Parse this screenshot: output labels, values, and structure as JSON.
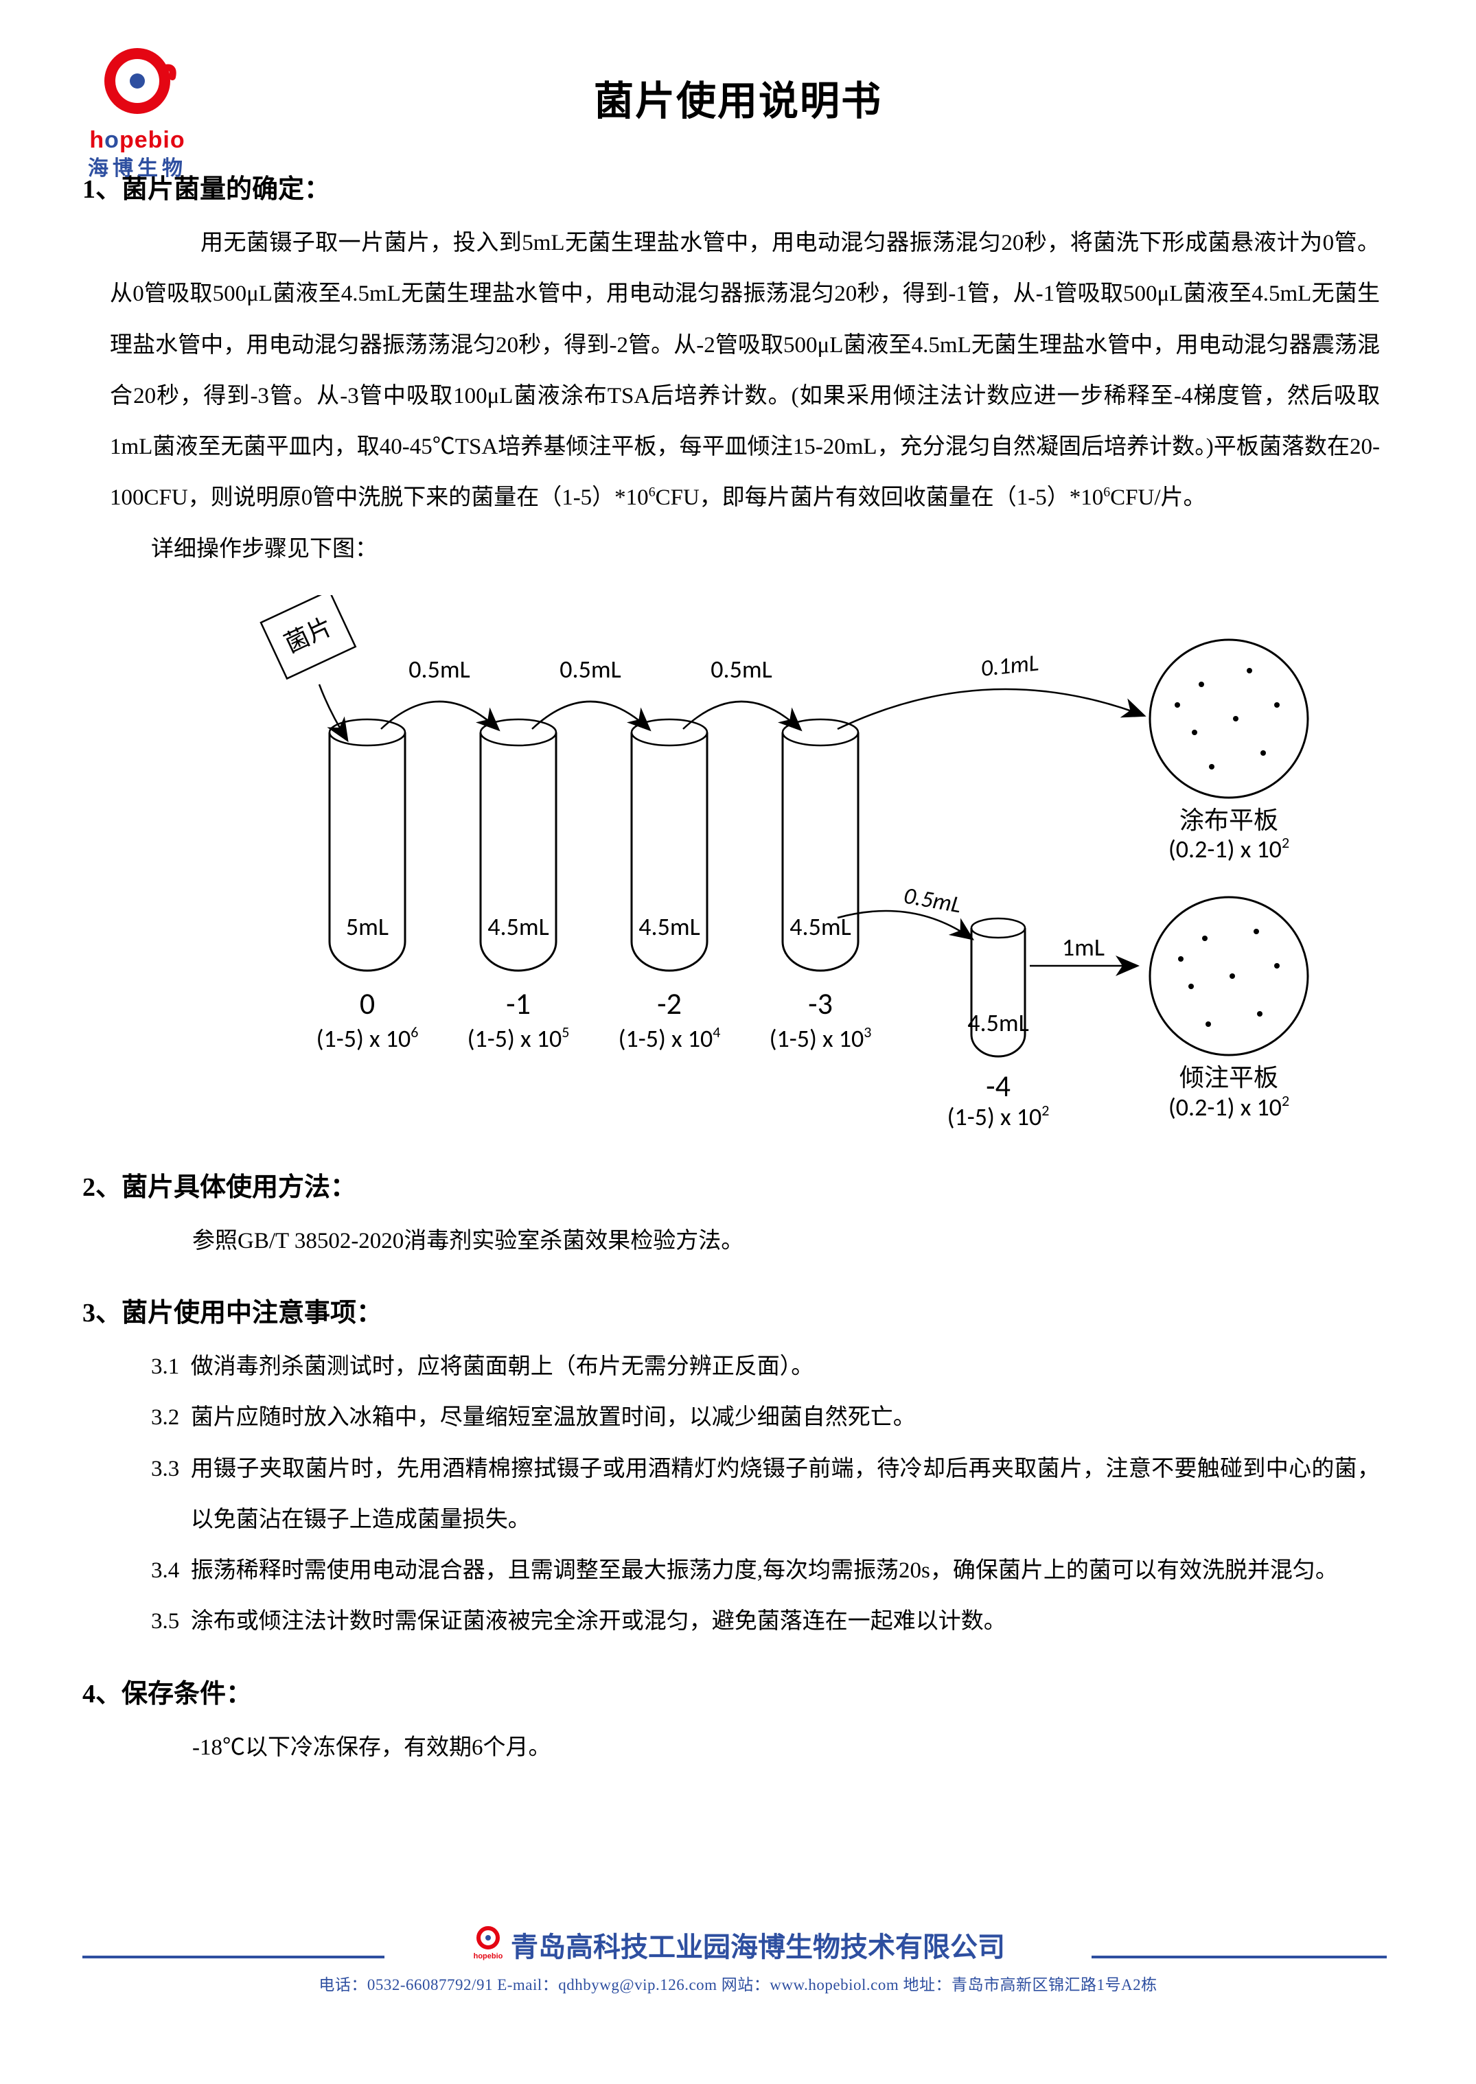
{
  "logo": {
    "en_pre": "h",
    "en_o1": "o",
    "en_mid": "pebi",
    "en_o2": "o",
    "ch": "海博生物"
  },
  "title": "菌片使用说明书",
  "s1": {
    "head": "1、菌片菌量的确定：",
    "p1": "用无菌镊子取一片菌片，投入到5mL无菌生理盐水管中，用电动混匀器振荡混匀20秒，将菌洗下形成菌悬液计为0管。从0管吸取500μL菌液至4.5mL无菌生理盐水管中，用电动混匀器振荡混匀20秒，得到-1管，从-1管吸取500μL菌液至4.5mL无菌生理盐水管中，用电动混匀器振荡荡混匀20秒，得到-2管。从-2管吸取500μL菌液至4.5mL无菌生理盐水管中，用电动混匀器震荡混合20秒，得到-3管。从-3管中吸取100μL菌液涂布TSA后培养计数。(如果采用倾注法计数应进一步稀释至-4梯度管，然后吸取1mL菌液至无菌平皿内，取40-45℃TSA培养基倾注平板，每平皿倾注15-20mL，充分混匀自然凝固后培养计数。)平板菌落数在20-100CFU，则说明原0管中洗脱下来的菌量在（1-5）*10",
    "p1b": "CFU，即每片菌片有效回收菌量在（1-5）*10",
    "p1c": "CFU/片。",
    "exp6": "6",
    "p2": "详细操作步骤见下图："
  },
  "diagram": {
    "chip": "菌片",
    "transfer": "0.5mL",
    "spread_vol": "0.1mL",
    "pour_vol": "1mL",
    "pour_xfer": "0.5mL",
    "tubes": [
      {
        "vol": "5mL",
        "num": "0",
        "cfu_pre": "(1-5) x 10",
        "exp": "6"
      },
      {
        "vol": "4.5mL",
        "num": "-1",
        "cfu_pre": "(1-5) x 10",
        "exp": "5"
      },
      {
        "vol": "4.5mL",
        "num": "-2",
        "cfu_pre": "(1-5) x 10",
        "exp": "4"
      },
      {
        "vol": "4.5mL",
        "num": "-3",
        "cfu_pre": "(1-5) x 10",
        "exp": "3"
      }
    ],
    "tube5": {
      "vol": "4.5mL",
      "num": "-4",
      "cfu_pre": "(1-5) x 10",
      "exp": "2"
    },
    "plate1": {
      "label": "涂布平板",
      "cfu_pre": "(0.2-1) x 10",
      "exp": "2"
    },
    "plate2": {
      "label": "倾注平板",
      "cfu_pre": "(0.2-1) x 10",
      "exp": "2"
    },
    "colors": {
      "stroke": "#000000",
      "bg": "#ffffff"
    }
  },
  "s2": {
    "head": "2、菌片具体使用方法：",
    "p": "参照GB/T 38502-2020消毒剂实验室杀菌效果检验方法。"
  },
  "s3": {
    "head": "3、菌片使用中注意事项：",
    "items": [
      {
        "n": "3.1",
        "t": "做消毒剂杀菌测试时，应将菌面朝上（布片无需分辨正反面）。"
      },
      {
        "n": "3.2",
        "t": "菌片应随时放入冰箱中，尽量缩短室温放置时间，以减少细菌自然死亡。"
      },
      {
        "n": "3.3",
        "t": "用镊子夹取菌片时，先用酒精棉擦拭镊子或用酒精灯灼烧镊子前端，待冷却后再夹取菌片，注意不要触碰到中心的菌，以免菌沾在镊子上造成菌量损失。"
      },
      {
        "n": "3.4",
        "t": "振荡稀释时需使用电动混合器，且需调整至最大振荡力度,每次均需振荡20s，确保菌片上的菌可以有效洗脱并混匀。"
      },
      {
        "n": "3.5",
        "t": "涂布或倾注法计数时需保证菌液被完全涂开或混匀，避免菌落连在一起难以计数。"
      }
    ]
  },
  "s4": {
    "head": "4、保存条件：",
    "p": "-18℃以下冷冻保存，有效期6个月。"
  },
  "footer": {
    "company": "青岛高科技工业园海博生物技术有限公司",
    "info": "电话：0532-66087792/91 E-mail：qdhbywg@vip.126.com 网站：www.hopebiol.com 地址：青岛市高新区锦汇路1号A2栋"
  }
}
